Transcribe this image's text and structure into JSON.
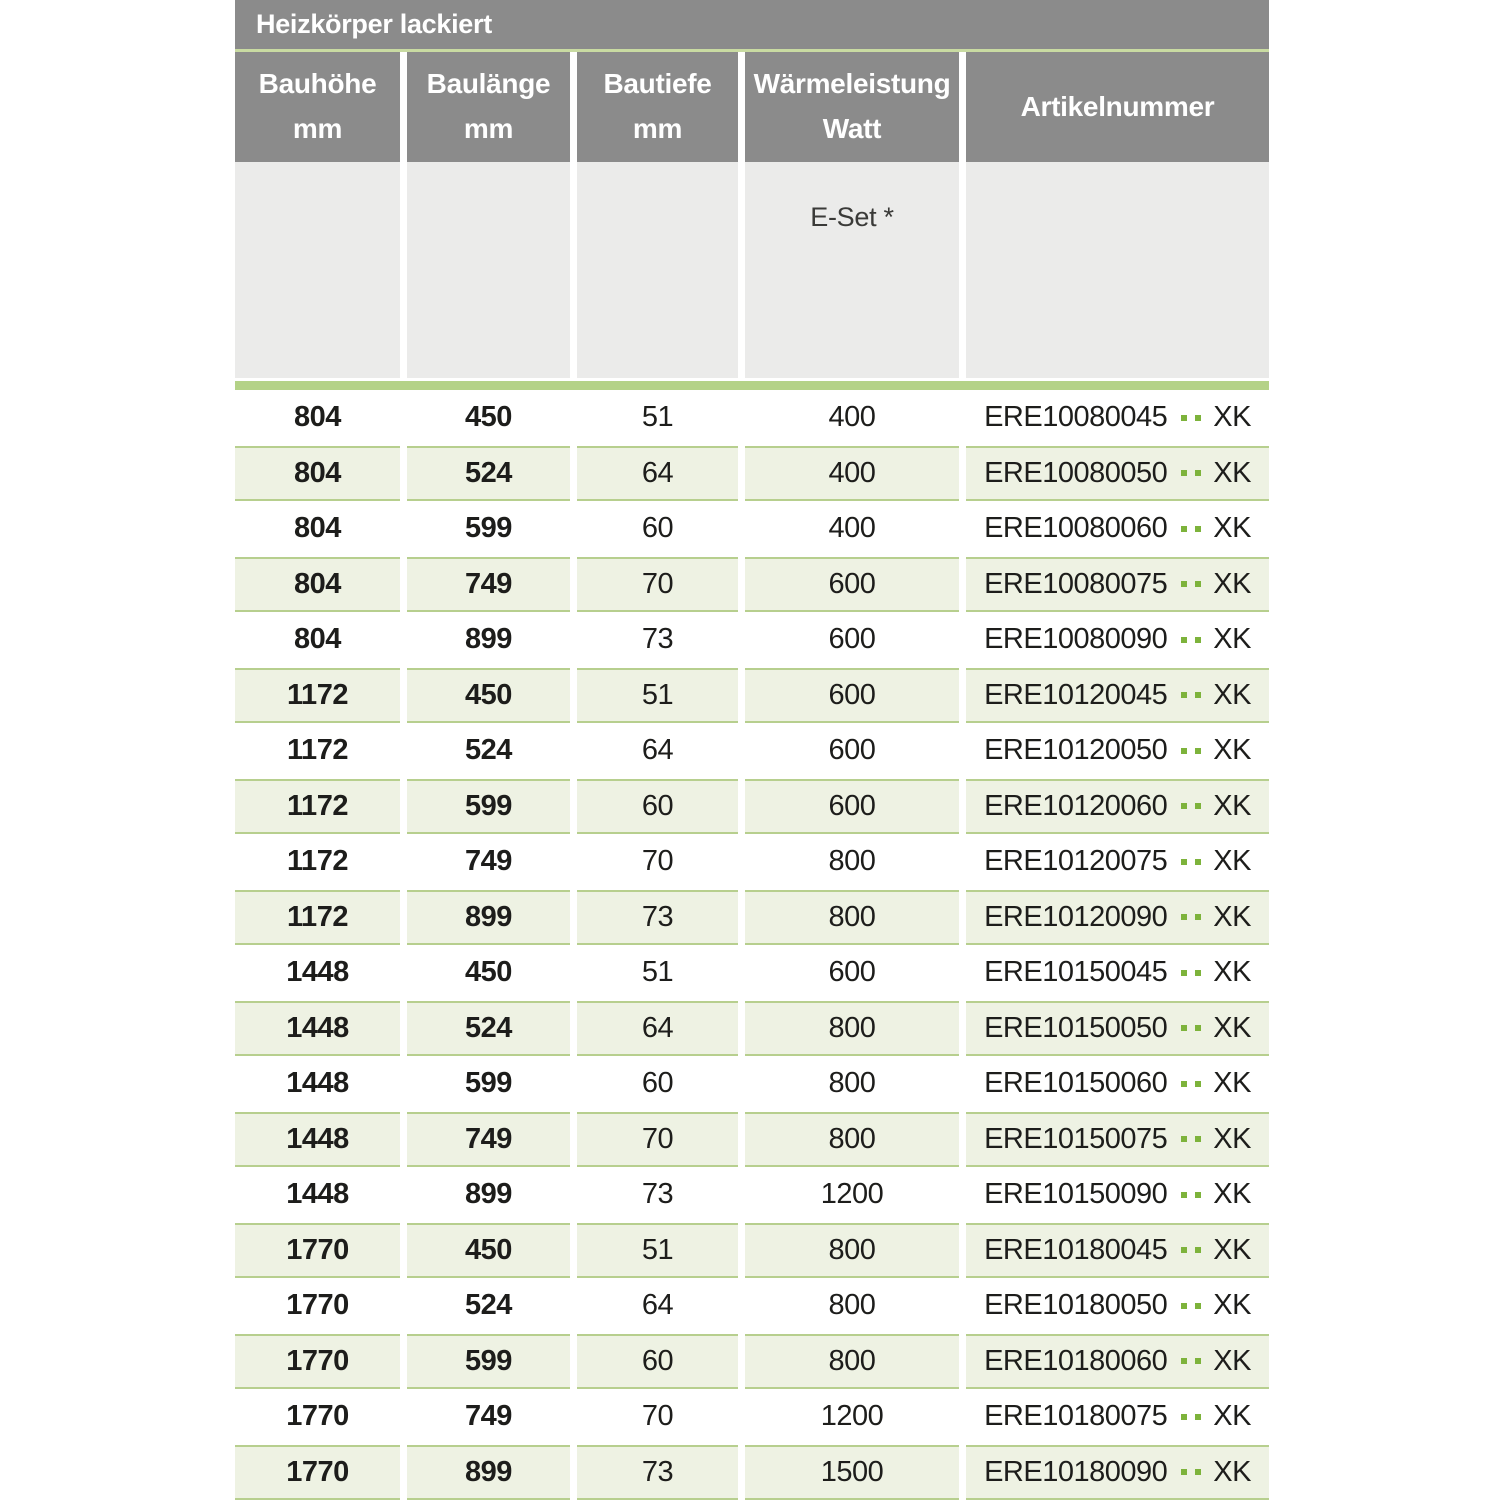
{
  "title": "Heizkörper lackiert",
  "table": {
    "columns": [
      {
        "id": "bauhoehe",
        "label": "Bauhöhe\nmm"
      },
      {
        "id": "baulaenge",
        "label": "Baulänge\nmm"
      },
      {
        "id": "bautiefe",
        "label": "Bautiefe\nmm"
      },
      {
        "id": "waermeleistung",
        "label": "Wärmeleistung\nWatt",
        "sublabel": "E-Set *"
      },
      {
        "id": "artikelnummer",
        "label": "Artikelnummer"
      }
    ],
    "rows": [
      {
        "bauhoehe": "804",
        "baulaenge": "450",
        "bautiefe": "51",
        "watt": "400",
        "artikel_prefix": "ERE10080045",
        "artikel_suffix": "XK"
      },
      {
        "bauhoehe": "804",
        "baulaenge": "524",
        "bautiefe": "64",
        "watt": "400",
        "artikel_prefix": "ERE10080050",
        "artikel_suffix": "XK"
      },
      {
        "bauhoehe": "804",
        "baulaenge": "599",
        "bautiefe": "60",
        "watt": "400",
        "artikel_prefix": "ERE10080060",
        "artikel_suffix": "XK"
      },
      {
        "bauhoehe": "804",
        "baulaenge": "749",
        "bautiefe": "70",
        "watt": "600",
        "artikel_prefix": "ERE10080075",
        "artikel_suffix": "XK"
      },
      {
        "bauhoehe": "804",
        "baulaenge": "899",
        "bautiefe": "73",
        "watt": "600",
        "artikel_prefix": "ERE10080090",
        "artikel_suffix": "XK"
      },
      {
        "bauhoehe": "1172",
        "baulaenge": "450",
        "bautiefe": "51",
        "watt": "600",
        "artikel_prefix": "ERE10120045",
        "artikel_suffix": "XK"
      },
      {
        "bauhoehe": "1172",
        "baulaenge": "524",
        "bautiefe": "64",
        "watt": "600",
        "artikel_prefix": "ERE10120050",
        "artikel_suffix": "XK"
      },
      {
        "bauhoehe": "1172",
        "baulaenge": "599",
        "bautiefe": "60",
        "watt": "600",
        "artikel_prefix": "ERE10120060",
        "artikel_suffix": "XK"
      },
      {
        "bauhoehe": "1172",
        "baulaenge": "749",
        "bautiefe": "70",
        "watt": "800",
        "artikel_prefix": "ERE10120075",
        "artikel_suffix": "XK"
      },
      {
        "bauhoehe": "1172",
        "baulaenge": "899",
        "bautiefe": "73",
        "watt": "800",
        "artikel_prefix": "ERE10120090",
        "artikel_suffix": "XK"
      },
      {
        "bauhoehe": "1448",
        "baulaenge": "450",
        "bautiefe": "51",
        "watt": "600",
        "artikel_prefix": "ERE10150045",
        "artikel_suffix": "XK"
      },
      {
        "bauhoehe": "1448",
        "baulaenge": "524",
        "bautiefe": "64",
        "watt": "800",
        "artikel_prefix": "ERE10150050",
        "artikel_suffix": "XK"
      },
      {
        "bauhoehe": "1448",
        "baulaenge": "599",
        "bautiefe": "60",
        "watt": "800",
        "artikel_prefix": "ERE10150060",
        "artikel_suffix": "XK"
      },
      {
        "bauhoehe": "1448",
        "baulaenge": "749",
        "bautiefe": "70",
        "watt": "800",
        "artikel_prefix": "ERE10150075",
        "artikel_suffix": "XK"
      },
      {
        "bauhoehe": "1448",
        "baulaenge": "899",
        "bautiefe": "73",
        "watt": "1200",
        "artikel_prefix": "ERE10150090",
        "artikel_suffix": "XK"
      },
      {
        "bauhoehe": "1770",
        "baulaenge": "450",
        "bautiefe": "51",
        "watt": "800",
        "artikel_prefix": "ERE10180045",
        "artikel_suffix": "XK"
      },
      {
        "bauhoehe": "1770",
        "baulaenge": "524",
        "bautiefe": "64",
        "watt": "800",
        "artikel_prefix": "ERE10180050",
        "artikel_suffix": "XK"
      },
      {
        "bauhoehe": "1770",
        "baulaenge": "599",
        "bautiefe": "60",
        "watt": "800",
        "artikel_prefix": "ERE10180060",
        "artikel_suffix": "XK"
      },
      {
        "bauhoehe": "1770",
        "baulaenge": "749",
        "bautiefe": "70",
        "watt": "1200",
        "artikel_prefix": "ERE10180075",
        "artikel_suffix": "XK"
      },
      {
        "bauhoehe": "1770",
        "baulaenge": "899",
        "bautiefe": "73",
        "watt": "1500",
        "artikel_prefix": "ERE10180090",
        "artikel_suffix": "XK"
      }
    ]
  },
  "colors": {
    "header_gray": "#8b8b8b",
    "title_divider_green": "#c9dba2",
    "subheader_gray": "#ebebea",
    "thick_bar_green": "#b4d287",
    "shaded_row_bg": "#eef2e3",
    "shaded_row_border": "#b7cf8e",
    "artikel_dot_green": "#7db33b",
    "text": "#1d1d1b"
  }
}
